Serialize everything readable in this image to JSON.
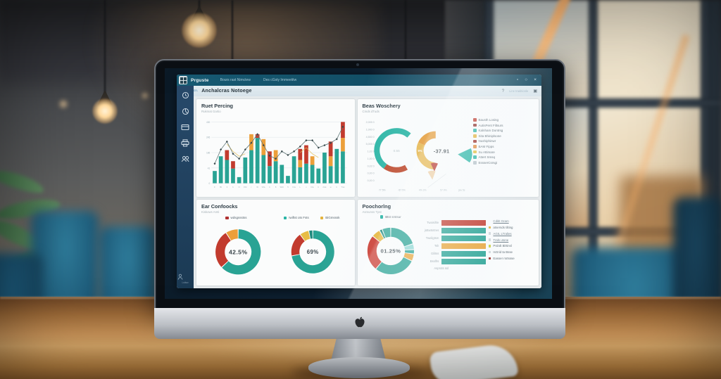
{
  "app": {
    "titlebar": {
      "app_name": "Prguste",
      "menu": [
        "Bours rast Nimctew",
        "Des cGsty Immeetitw"
      ],
      "controls": {
        "minimize": "▫",
        "maximize": "○",
        "close": "×"
      }
    },
    "toolbar": {
      "breadcrumb": "Dpwtwwcn.",
      "title": "Anchalcras Notoege",
      "help": "?",
      "note": "Line traditionle",
      "grid": "▣"
    },
    "sidebar": {
      "icons": [
        "clock-icon",
        "pie-icon",
        "card-icon",
        "printer-icon",
        "users-icon"
      ],
      "bottom_icon": "person-icon",
      "bottom_label": "Lsttsw"
    }
  },
  "chart_data": [
    {
      "type": "bar",
      "title": "Ruet Percing",
      "subtitle": "Rukmat Gartio",
      "y_ticks": [
        "430",
        "245",
        "186",
        "41",
        "0"
      ],
      "categories": [
        "F",
        "8b",
        "3",
        "b",
        "N",
        "15tr",
        "r",
        "W",
        "VGL",
        "b",
        "8",
        "Wvb",
        "5",
        "brw",
        "L",
        "v",
        "brw",
        "b",
        "2nst",
        "w",
        "b",
        "Tnw"
      ],
      "series": [
        {
          "name": "teal",
          "color": "#29a394",
          "values": [
            20,
            44,
            38,
            24,
            10,
            42,
            54,
            74,
            46,
            28,
            36,
            30,
            12,
            44,
            26,
            32,
            30,
            24,
            50,
            28,
            56,
            52
          ]
        },
        {
          "name": "orange",
          "color": "#ec9f3a",
          "values": [
            0,
            0,
            0,
            0,
            0,
            0,
            26,
            0,
            26,
            0,
            18,
            0,
            0,
            0,
            12,
            0,
            14,
            0,
            0,
            16,
            0,
            22
          ]
        },
        {
          "name": "red",
          "color": "#c23b2e",
          "values": [
            0,
            0,
            16,
            12,
            0,
            0,
            0,
            6,
            0,
            24,
            0,
            0,
            0,
            0,
            18,
            30,
            0,
            0,
            0,
            24,
            0,
            26
          ]
        }
      ],
      "trend_line": {
        "color": "#5d7373",
        "marker_color": "#37474b",
        "values": [
          32,
          55,
          68,
          48,
          40,
          55,
          66,
          80,
          62,
          45,
          40,
          52,
          46,
          52,
          60,
          70,
          70,
          58,
          62,
          66,
          72,
          92
        ]
      },
      "accent_lines": [
        {
          "color": "#e3bd54",
          "start": 2,
          "values": [
            64,
            52,
            44,
            48
          ]
        },
        {
          "color": "#e3bd54",
          "start": 14,
          "values": [
            50,
            58,
            48,
            42
          ]
        }
      ],
      "ylim": [
        0,
        100
      ],
      "grid": true,
      "legend_position": "none"
    },
    {
      "type": "pie",
      "title": "Beas Woschery",
      "subtitle": "Cmds dTuds",
      "y_labels": [
        "2,005 0",
        "1,000 0",
        "4,500 0",
        "5,005 0",
        "1,02 0",
        "1,00 0",
        "0,02 0",
        "0,00 0",
        "0,00 0"
      ],
      "x_labels": [
        "77 5%",
        "-57 5%",
        "4% 3%",
        "57 9%",
        "jsw 5s"
      ],
      "gauge": {
        "teal_arc_deg": [
          50,
          235
        ],
        "red_arc_deg": [
          235,
          300
        ],
        "teal": "#2ab5a5",
        "red": "#bf4a2d",
        "center_label": "0.55"
      },
      "ring": {
        "orange_arc_deg": [
          90,
          155
        ],
        "yellow_arc_deg": [
          155,
          265
        ],
        "orange": "#e69a33",
        "yellow": "#e7b64a",
        "pct_label": "9%",
        "center_value": "-37.91"
      },
      "wedges": [
        {
          "name": "red-wedge",
          "color": "#b8352c"
        },
        {
          "name": "peach-wedge",
          "color": "#f0cfa4"
        },
        {
          "name": "teal-wedge",
          "color": "#2ab5a5"
        }
      ],
      "legend": [
        {
          "color": "#c0392b",
          "label": "Bausth Losing"
        },
        {
          "color": "#8e2f2a",
          "label": "AutisPent Filtsurs"
        },
        {
          "color": "#2ab5a5",
          "label": "Kalnham Dontrsg"
        },
        {
          "color": "#e4b33c",
          "label": "Sita Bhiniplsone"
        },
        {
          "color": "#9b2c25",
          "label": "Nushiphinwr"
        },
        {
          "color": "#e08a3c",
          "label": "BAM Fipps"
        },
        {
          "color": "#e4c03c",
          "label": "Su Attimare"
        },
        {
          "color": "#2ab5a5",
          "label": "Attert Smsq"
        },
        {
          "color": "#b9c4c9",
          "label": "EssserCsrsgi"
        }
      ],
      "legend_position": "right"
    },
    {
      "type": "pie",
      "title": "Ear Confoocks",
      "subtitle": "Kiskows Amti",
      "legend": [
        {
          "color": "#b03030",
          "label": "wdsgssstss"
        },
        {
          "color": "#2ab5a5",
          "label": "Iwiftst ots Fsts"
        },
        {
          "color": "#e4b33c",
          "label": "BiGmsssk"
        }
      ],
      "donuts": [
        {
          "center": "42.5%",
          "segments": [
            {
              "color": "#29a394",
              "value": 63
            },
            {
              "color": "#c23b2e",
              "value": 28
            },
            {
              "color": "#ec9f3a",
              "value": 9
            }
          ]
        },
        {
          "center": "69%",
          "segments": [
            {
              "color": "#29a394",
              "value": 72
            },
            {
              "color": "#c23b2e",
              "value": 18
            },
            {
              "color": "#e7bc45",
              "value": 7
            },
            {
              "color": "#1f8a7d",
              "value": 3
            }
          ]
        }
      ]
    },
    {
      "type": "pie",
      "title": "Poochorlng",
      "subtitle": "Asmunss Tpst",
      "legend": [
        {
          "color": "#2ab5a5",
          "label": "Btst srstsur"
        }
      ],
      "donut": {
        "center": "01.25%",
        "segments": [
          {
            "color": "#29a394",
            "value": 20
          },
          {
            "color": "#8fd9d4",
            "value": 4
          },
          {
            "color": "#29a394",
            "value": 3
          },
          {
            "color": "#eaa63a",
            "value": 5
          },
          {
            "color": "#29a394",
            "value": 29
          },
          {
            "color": "#cc3b30",
            "value": 25
          },
          {
            "color": "#e8b73c",
            "value": 6
          },
          {
            "color": "#1f8a7d",
            "value": 2
          },
          {
            "color": "#29a394",
            "value": 6
          }
        ]
      },
      "bars": {
        "labels": [
          "Twaisihle",
          "jsBwtsrtres",
          "Tweilgtsm",
          "Tsh",
          "Gilitss",
          "Bsslfrs",
          "Asprots ssl"
        ],
        "colors": [
          "#c23b2e",
          "#29a394",
          "#29a394",
          "#eaa63a",
          "#29a394",
          "#29a394",
          null
        ],
        "values": [
          92,
          92,
          92,
          92,
          92,
          92,
          0
        ]
      },
      "list": [
        {
          "marker": null,
          "text": "Cditit Gram",
          "underline": true
        },
        {
          "marker": "#e4b33c",
          "text": "atsersds tilting",
          "underline": false
        },
        {
          "marker": "#cfd6da",
          "text": "AGIL LTralies",
          "underline": true
        },
        {
          "marker": "#cfd6da",
          "text": "Trals utone",
          "underline": true
        },
        {
          "marker": "#cdd23c",
          "text": "PsDdt Blrtinsl",
          "underline": false
        },
        {
          "marker": "#cfd6da",
          "text": "IsGrid ta Bsse",
          "underline": false
        },
        {
          "marker": "#9b2c25",
          "text": "Easser rsrtssse",
          "underline": false
        }
      ]
    }
  ]
}
